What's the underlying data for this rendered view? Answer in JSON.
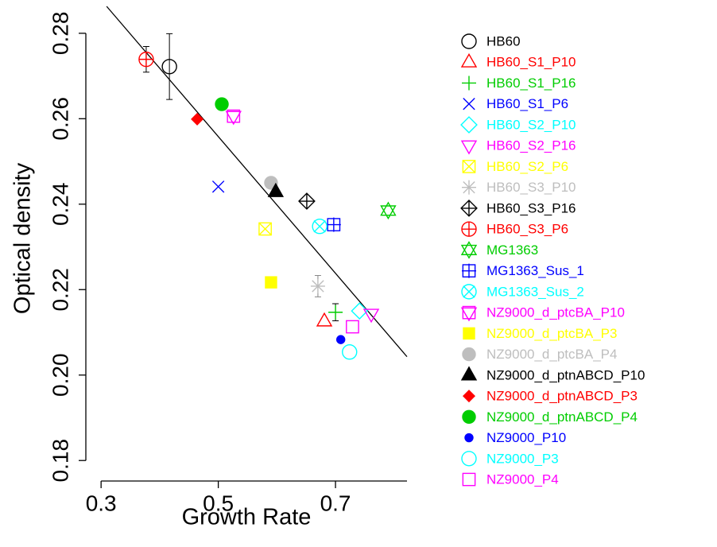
{
  "chart_data": {
    "type": "scatter",
    "x_label": "Growth Rate",
    "y_label": "Optical density",
    "xlim": [
      0.274,
      0.822
    ],
    "ylim": [
      0.1752,
      0.2863
    ],
    "xticks": [
      0.3,
      0.5,
      0.7
    ],
    "yticks": [
      0.18,
      {
        "value": 0.2,
        "label": "0.20"
      },
      0.22,
      0.24,
      0.26,
      0.28
    ],
    "fit_line": {
      "x": [
        0.3095,
        0.822
      ],
      "y": [
        0.2863,
        0.2043
      ],
      "color": "#000000"
    },
    "series": [
      {
        "name": "HB60",
        "color": "#000000",
        "marker": "circle",
        "x": [
          0.4166
        ],
        "y": [
          0.2722
        ],
        "yerr": [
          0.0077
        ]
      },
      {
        "name": "HB60_S1_P10",
        "color": "#ff0000",
        "marker": "triangle",
        "x": [
          0.681
        ],
        "y": [
          0.2126
        ]
      },
      {
        "name": "HB60_S1_P16",
        "color": "#00cd00",
        "marker": "plus",
        "x": [
          0.7
        ],
        "y": [
          0.2147
        ],
        "yerr": [
          0.002
        ]
      },
      {
        "name": "HB60_S1_P6",
        "color": "#0000ff",
        "marker": "x",
        "x": [
          0.5
        ],
        "y": [
          0.2441
        ]
      },
      {
        "name": "HB60_S2_P10",
        "color": "#00ffff",
        "marker": "diamond",
        "x": [
          0.741
        ],
        "y": [
          0.215
        ]
      },
      {
        "name": "HB60_S2_P16",
        "color": "#ff00ff",
        "marker": "triangle-down",
        "x": [
          0.761
        ],
        "y": [
          0.2143
        ]
      },
      {
        "name": "HB60_S2_P6",
        "color": "#ffff00",
        "marker": "square x",
        "x": [
          0.58
        ],
        "y": [
          0.2342
        ]
      },
      {
        "name": "HB60_S3_P10",
        "color": "#bebebe",
        "marker": "plus x",
        "x": [
          0.67
        ],
        "y": [
          0.2208
        ],
        "yerr": [
          0.0025
        ]
      },
      {
        "name": "HB60_S3_P16",
        "color": "#000000",
        "marker": "diamond plus",
        "x": [
          0.651
        ],
        "y": [
          0.2407
        ]
      },
      {
        "name": "HB60_S3_P6",
        "color": "#ff0000",
        "marker": "circle plus",
        "x": [
          0.377
        ],
        "y": [
          0.2739
        ],
        "yerr": [
          0.003
        ]
      },
      {
        "name": "MG1363",
        "color": "#00cd00",
        "marker": "triangle triangle-down",
        "x": [
          0.79
        ],
        "y": [
          0.2385
        ]
      },
      {
        "name": "MG1363_Sus_1",
        "color": "#0000ff",
        "marker": "square plus",
        "x": [
          0.697
        ],
        "y": [
          0.2352
        ]
      },
      {
        "name": "MG1363_Sus_2",
        "color": "#00ffff",
        "marker": "circle x",
        "x": [
          0.673
        ],
        "y": [
          0.2348
        ]
      },
      {
        "name": "NZ9000_d_ptcBA_P10",
        "color": "#ff00ff",
        "marker": "square triangle-down",
        "x": [
          0.526
        ],
        "y": [
          0.2606
        ]
      },
      {
        "name": "NZ9000_d_ptcBA_P3",
        "color": "#ffff00",
        "marker": "solid-square",
        "x": [
          0.59
        ],
        "y": [
          0.2217
        ]
      },
      {
        "name": "NZ9000_d_ptcBA_P4",
        "color": "#bebebe",
        "marker": "solid-circle",
        "x": [
          0.59
        ],
        "y": [
          0.245
        ]
      },
      {
        "name": "NZ9000_d_ptnABCD_P10",
        "color": "#000000",
        "marker": "solid-triangle",
        "x": [
          0.598
        ],
        "y": [
          0.2429
        ]
      },
      {
        "name": "NZ9000_d_ptnABCD_P3",
        "color": "#ff0000",
        "marker": "solid-diamond",
        "x": [
          0.464
        ],
        "y": [
          0.2599
        ]
      },
      {
        "name": "NZ9000_d_ptnABCD_P4",
        "color": "#00cd00",
        "marker": "solid-circle",
        "x": [
          0.506
        ],
        "y": [
          0.2634
        ]
      },
      {
        "name": "NZ9000_P10",
        "color": "#0000ff",
        "marker": "solid-circle-small",
        "x": [
          0.709
        ],
        "y": [
          0.2083
        ]
      },
      {
        "name": "NZ9000_P3",
        "color": "#00ffff",
        "marker": "circle",
        "x": [
          0.724
        ],
        "y": [
          0.2054
        ]
      },
      {
        "name": "NZ9000_P4",
        "color": "#ff00ff",
        "marker": "square",
        "x": [
          0.729
        ],
        "y": [
          0.2113
        ]
      }
    ]
  }
}
